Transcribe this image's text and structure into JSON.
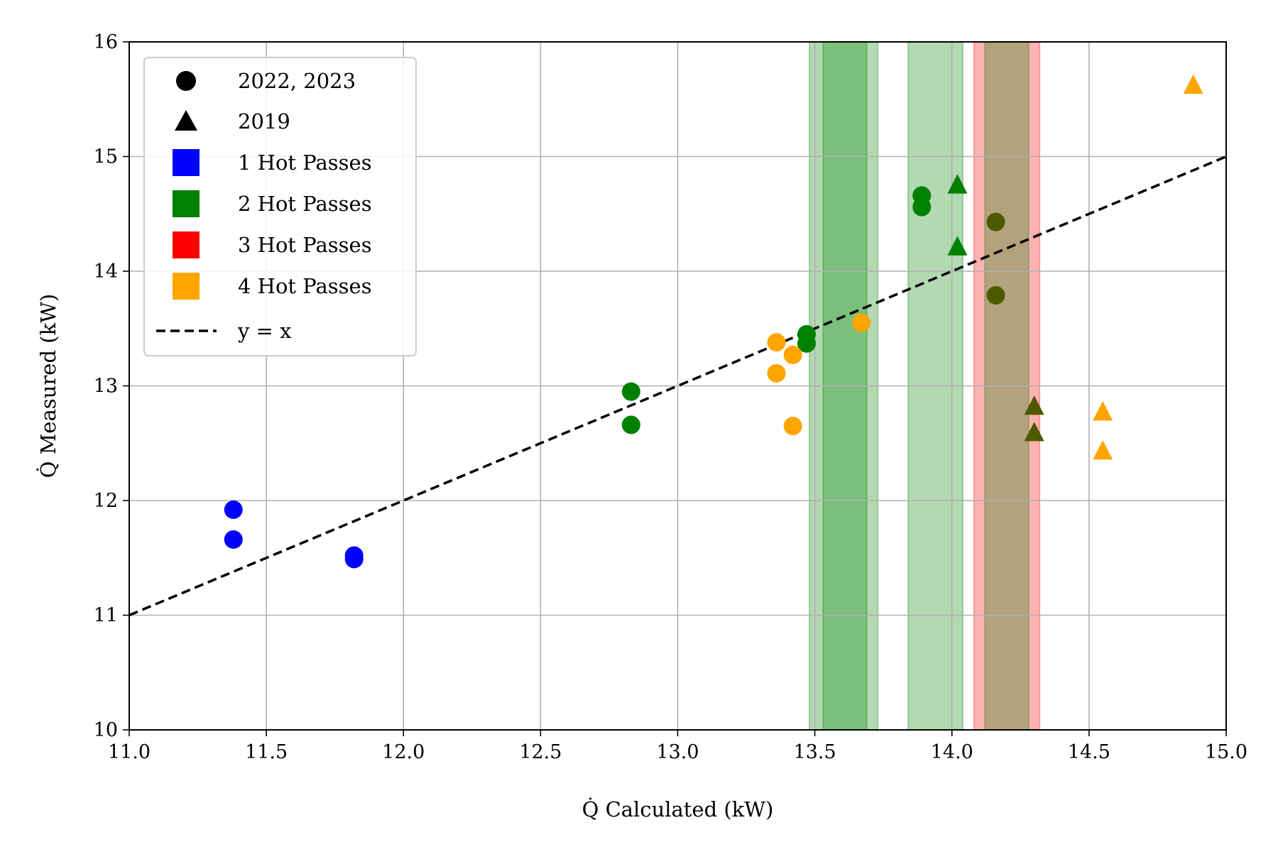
{
  "chart_data": {
    "type": "scatter",
    "title": "",
    "xlabel": "Q̇ Calculated (kW)",
    "ylabel": "Q̇ Measured (kW)",
    "xlim": [
      11.0,
      15.0
    ],
    "ylim": [
      10,
      16
    ],
    "xticks": [
      "11.0",
      "11.5",
      "12.0",
      "12.5",
      "13.0",
      "13.5",
      "14.0",
      "14.5",
      "15.0"
    ],
    "yticks": [
      "10",
      "11",
      "12",
      "13",
      "14",
      "15",
      "16"
    ],
    "grid": true,
    "legend_position": "top-left",
    "colors": {
      "1 Hot Passes": "#0000ff",
      "2 Hot Passes": "#008000",
      "3 Hot Passes": "#ff0000",
      "4 Hot Passes": "#ffa500",
      "overlap": "#4d5a00"
    },
    "legend": [
      {
        "label": "2022, 2023",
        "marker": "circle",
        "color": "#000000"
      },
      {
        "label": "2019",
        "marker": "triangle",
        "color": "#000000"
      },
      {
        "label": "1 Hot Passes",
        "marker": "square",
        "color": "#0000ff"
      },
      {
        "label": "2 Hot Passes",
        "marker": "square",
        "color": "#008000"
      },
      {
        "label": "3 Hot Passes",
        "marker": "square",
        "color": "#ff0000"
      },
      {
        "label": "4 Hot Passes",
        "marker": "square",
        "color": "#ffa500"
      },
      {
        "label": "y = x",
        "marker": "dashed-line",
        "color": "#000000"
      }
    ],
    "reference_line": {
      "label": "y = x",
      "x": [
        11.0,
        15.0
      ],
      "y": [
        11.0,
        15.0
      ],
      "style": "dashed"
    },
    "bands": [
      {
        "group": "2 Hot Passes",
        "x0": 13.48,
        "x1": 13.73,
        "color": "#008000",
        "opacity": 0.3
      },
      {
        "group": "2 Hot Passes",
        "x0": 13.53,
        "x1": 13.69,
        "color": "#008000",
        "opacity": 0.3
      },
      {
        "group": "2 Hot Passes",
        "x0": 13.84,
        "x1": 14.04,
        "color": "#008000",
        "opacity": 0.3
      },
      {
        "group": "3 Hot Passes",
        "x0": 14.08,
        "x1": 14.32,
        "color": "#ff0000",
        "opacity": 0.3
      },
      {
        "group": "2 Hot Passes",
        "x0": 14.12,
        "x1": 14.28,
        "color": "#008000",
        "opacity": 0.3
      }
    ],
    "series": [
      {
        "name": "1 Hot Passes",
        "year": "2022, 2023",
        "marker": "circle",
        "color": "#0000ff",
        "points": [
          [
            11.38,
            11.92
          ],
          [
            11.38,
            11.66
          ],
          [
            11.82,
            11.52
          ],
          [
            11.82,
            11.49
          ]
        ]
      },
      {
        "name": "2 Hot Passes",
        "year": "2022, 2023",
        "marker": "circle",
        "color": "#008000",
        "points": [
          [
            12.83,
            12.95
          ],
          [
            12.83,
            12.66
          ],
          [
            13.47,
            13.45
          ],
          [
            13.47,
            13.37
          ],
          [
            13.89,
            14.66
          ],
          [
            13.89,
            14.56
          ]
        ]
      },
      {
        "name": "2 Hot Passes",
        "year": "2019",
        "marker": "triangle",
        "color": "#008000",
        "points": [
          [
            14.02,
            14.75
          ],
          [
            14.02,
            14.21
          ]
        ]
      },
      {
        "name": "3 Hot Passes",
        "year": "2022, 2023",
        "marker": "circle",
        "color": "#4d5a00",
        "points": [
          [
            14.16,
            14.43
          ],
          [
            14.16,
            13.79
          ]
        ]
      },
      {
        "name": "3 Hot Passes",
        "year": "2019",
        "marker": "triangle",
        "color": "#4d5a00",
        "points": [
          [
            14.3,
            12.82
          ],
          [
            14.3,
            12.59
          ]
        ]
      },
      {
        "name": "4 Hot Passes",
        "year": "2022, 2023",
        "marker": "circle",
        "color": "#ffa500",
        "points": [
          [
            13.36,
            13.38
          ],
          [
            13.36,
            13.11
          ],
          [
            13.42,
            13.27
          ],
          [
            13.42,
            12.65
          ],
          [
            13.67,
            13.55
          ]
        ]
      },
      {
        "name": "4 Hot Passes",
        "year": "2019",
        "marker": "triangle",
        "color": "#ffa500",
        "points": [
          [
            14.55,
            12.77
          ],
          [
            14.55,
            12.43
          ],
          [
            14.88,
            15.62
          ]
        ]
      }
    ]
  }
}
